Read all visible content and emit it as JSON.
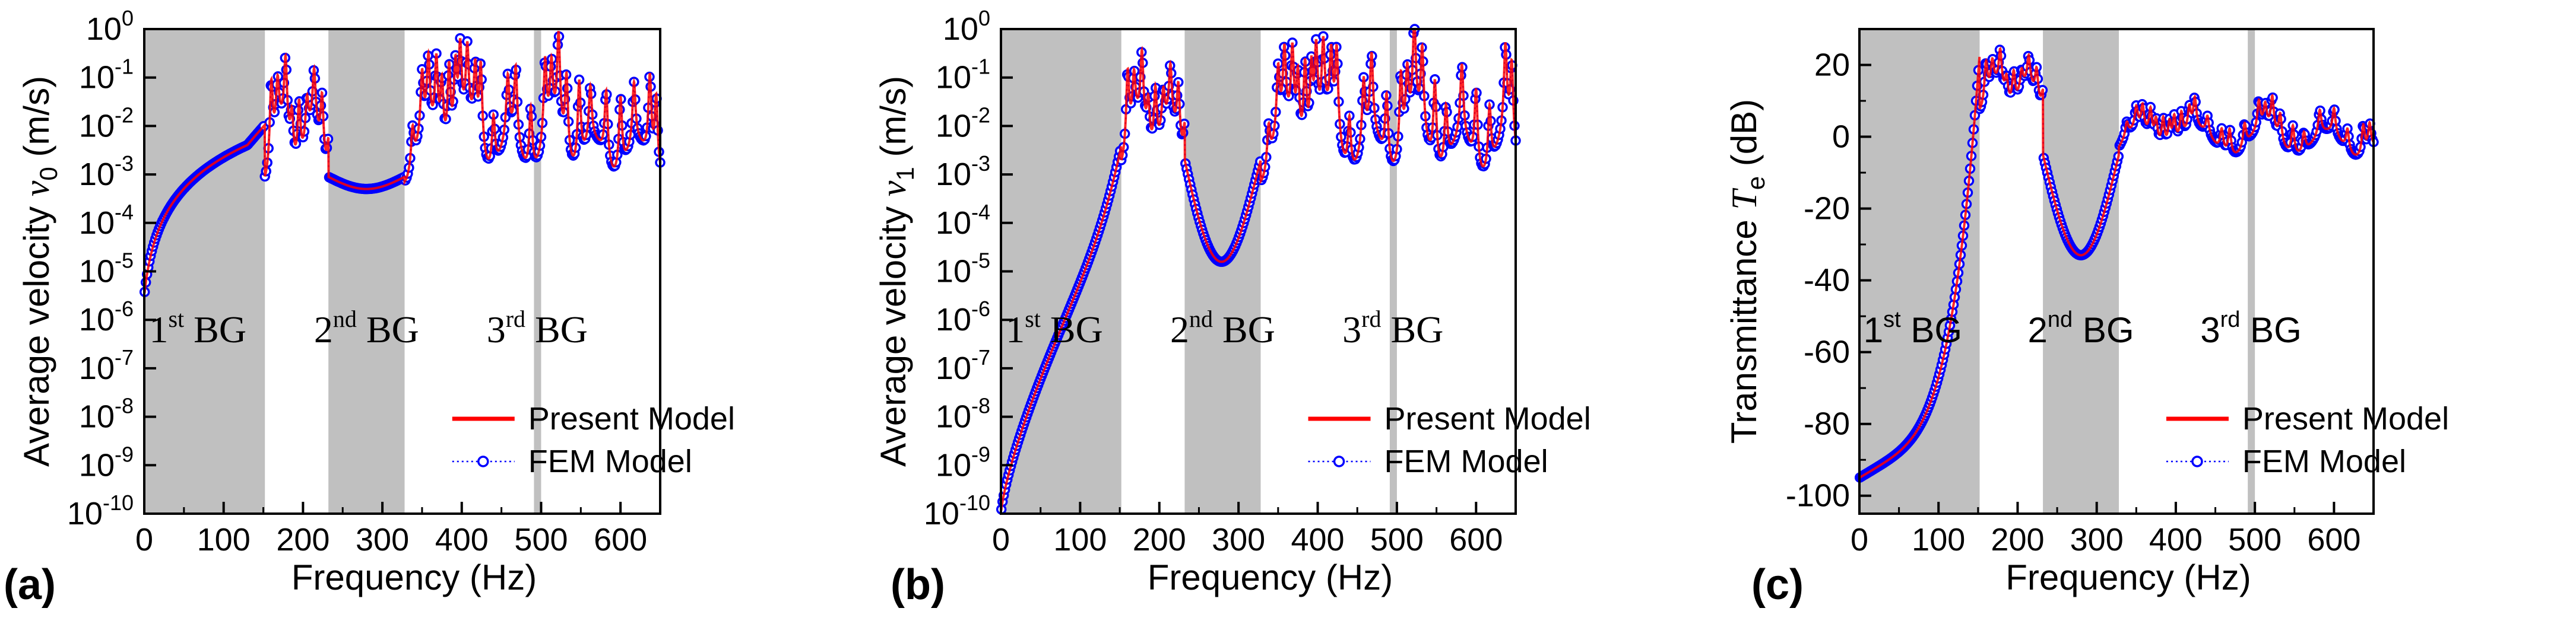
{
  "chart_data": [
    {
      "panel_label": "(a)",
      "type": "line",
      "xlabel": "Frequency (Hz)",
      "ylabel": {
        "prefix": "Average velocity ",
        "symbol": "v",
        "subscript": "0",
        "suffix": " (m/s)"
      },
      "y_scale": "log",
      "xlim": [
        0,
        650
      ],
      "ylim_exp": [
        -10,
        0
      ],
      "x_ticks": [
        "0",
        "100",
        "200",
        "300",
        "400",
        "500",
        "600"
      ],
      "y_ticks": [
        "10",
        "10",
        "10",
        "10",
        "10",
        "10",
        "10",
        "10",
        "10",
        "10",
        "10"
      ],
      "y_tick_exponents": [
        "0",
        "-1",
        "-2",
        "-3",
        "-4",
        "-5",
        "-6",
        "-7",
        "-8",
        "-9",
        "-10"
      ],
      "band_gaps": [
        {
          "range": [
            0,
            152
          ],
          "num": "1",
          "sup": "st",
          "text": "BG"
        },
        {
          "range": [
            232,
            328
          ],
          "num": "2",
          "sup": "nd",
          "text": "BG"
        },
        {
          "range": [
            491,
            500
          ],
          "num": "3",
          "sup": "rd",
          "text": "BG"
        }
      ],
      "grid": false,
      "legend_position": "bottom-right",
      "series": [
        {
          "name": "Present Model",
          "color": "#ff0000",
          "style": "solid line"
        },
        {
          "name": "FEM Model",
          "color": "#0000ff",
          "style": "dotted line with open circle markers"
        }
      ]
    },
    {
      "panel_label": "(b)",
      "type": "line",
      "xlabel": "Frequency (Hz)",
      "ylabel": {
        "prefix": "Average velocity ",
        "symbol": "v",
        "subscript": "1",
        "suffix": " (m/s)"
      },
      "y_scale": "log",
      "xlim": [
        0,
        650
      ],
      "ylim_exp": [
        -10,
        0
      ],
      "x_ticks": [
        "0",
        "100",
        "200",
        "300",
        "400",
        "500",
        "600"
      ],
      "y_ticks": [
        "10",
        "10",
        "10",
        "10",
        "10",
        "10",
        "10",
        "10",
        "10",
        "10",
        "10"
      ],
      "y_tick_exponents": [
        "0",
        "-1",
        "-2",
        "-3",
        "-4",
        "-5",
        "-6",
        "-7",
        "-8",
        "-9",
        "-10"
      ],
      "band_gaps": [
        {
          "range": [
            0,
            152
          ],
          "num": "1",
          "sup": "st",
          "text": "BG"
        },
        {
          "range": [
            232,
            328
          ],
          "num": "2",
          "sup": "nd",
          "text": "BG"
        },
        {
          "range": [
            491,
            500
          ],
          "num": "3",
          "sup": "rd",
          "text": "BG"
        }
      ],
      "grid": false,
      "legend_position": "bottom-right",
      "series": [
        {
          "name": "Present Model",
          "color": "#ff0000",
          "style": "solid line"
        },
        {
          "name": "FEM Model",
          "color": "#0000ff",
          "style": "dotted line with open circle markers"
        }
      ]
    },
    {
      "panel_label": "(c)",
      "type": "line",
      "xlabel": "Frequency (Hz)",
      "ylabel": {
        "prefix": "Transmittance ",
        "symbol": "T",
        "subscript": "e",
        "suffix": " (dB)"
      },
      "y_scale": "linear",
      "xlim": [
        0,
        650
      ],
      "ylim": [
        -105,
        30
      ],
      "x_ticks": [
        "0",
        "100",
        "200",
        "300",
        "400",
        "500",
        "600"
      ],
      "y_ticks": [
        "20",
        "0",
        "-20",
        "-40",
        "-60",
        "-80",
        "-100"
      ],
      "band_gaps": [
        {
          "range": [
            0,
            152
          ],
          "num": "1",
          "sup": "st",
          "text": "BG"
        },
        {
          "range": [
            232,
            328
          ],
          "num": "2",
          "sup": "nd",
          "text": "BG"
        },
        {
          "range": [
            491,
            500
          ],
          "num": "3",
          "sup": "rd",
          "text": "BG"
        }
      ],
      "grid": false,
      "legend_position": "bottom-right",
      "series": [
        {
          "name": "Present Model",
          "color": "#ff0000",
          "style": "solid line"
        },
        {
          "name": "FEM Model",
          "color": "#0000ff",
          "style": "dotted line with open circle markers"
        }
      ]
    }
  ],
  "colors": {
    "band_gap_fill": "#c0c0c0",
    "present_model": "#ff0000",
    "fem_model": "#0000ff",
    "axes": "#000000"
  }
}
